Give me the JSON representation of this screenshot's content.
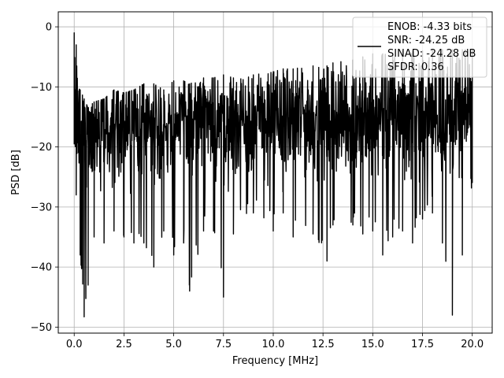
{
  "chart_data": {
    "type": "line",
    "title": "",
    "xlabel": "Frequency [MHz]",
    "ylabel": "PSD [dB]",
    "xlim": [
      -0.8,
      21.0
    ],
    "ylim": [
      -51.0,
      2.5
    ],
    "xticks": [
      0,
      2.5,
      5,
      7.5,
      10,
      12.5,
      15,
      17.5,
      20
    ],
    "xtick_labels": [
      "0.0",
      "2.5",
      "5.0",
      "7.5",
      "10.0",
      "12.5",
      "15.0",
      "17.5",
      "20.0"
    ],
    "yticks": [
      0,
      -10,
      -20,
      -30,
      -40,
      -50
    ],
    "ytick_labels": [
      "0",
      "−10",
      "−20",
      "−30",
      "−40",
      "−50"
    ],
    "grid": true,
    "legend_placement": "top-right",
    "legend": {
      "lines": [
        "ENOB: -4.33 bits",
        "SNR: -24.25 dB",
        "SINAD: -24.28 dB",
        "SFDR: 0.36"
      ]
    },
    "series": [
      {
        "color": "#000000",
        "envelope": [
          {
            "x": 0.0,
            "max": -1.0,
            "min": -19.5
          },
          {
            "x": 0.1,
            "max": -3.0,
            "min": -28.0
          },
          {
            "x": 0.3,
            "max": -10.5,
            "min": -38.0
          },
          {
            "x": 0.5,
            "max": -12.0,
            "min": -48.3
          },
          {
            "x": 0.7,
            "max": -13.5,
            "min": -43.0
          },
          {
            "x": 1.0,
            "max": -12.5,
            "min": -35.0
          },
          {
            "x": 1.5,
            "max": -12.0,
            "min": -36.0
          },
          {
            "x": 2.0,
            "max": -10.5,
            "min": -34.0
          },
          {
            "x": 2.5,
            "max": -11.0,
            "min": -35.0
          },
          {
            "x": 3.0,
            "max": -10.5,
            "min": -36.0
          },
          {
            "x": 3.5,
            "max": -9.5,
            "min": -36.0
          },
          {
            "x": 4.0,
            "max": -9.5,
            "min": -40.0
          },
          {
            "x": 4.5,
            "max": -10.5,
            "min": -34.0
          },
          {
            "x": 5.0,
            "max": -9.0,
            "min": -38.0
          },
          {
            "x": 5.5,
            "max": -9.0,
            "min": -36.0
          },
          {
            "x": 5.8,
            "max": -9.5,
            "min": -44.0
          },
          {
            "x": 6.5,
            "max": -8.5,
            "min": -34.0
          },
          {
            "x": 7.0,
            "max": -8.5,
            "min": -34.0
          },
          {
            "x": 7.5,
            "max": -8.0,
            "min": -45.0
          },
          {
            "x": 8.0,
            "max": -8.5,
            "min": -34.5
          },
          {
            "x": 9.0,
            "max": -8.0,
            "min": -31.0
          },
          {
            "x": 10.0,
            "max": -7.5,
            "min": -34.0
          },
          {
            "x": 10.5,
            "max": -7.0,
            "min": -31.0
          },
          {
            "x": 11.0,
            "max": -7.0,
            "min": -35.0
          },
          {
            "x": 12.0,
            "max": -6.5,
            "min": -34.5
          },
          {
            "x": 12.7,
            "max": -6.5,
            "min": -39.0
          },
          {
            "x": 13.0,
            "max": -6.0,
            "min": -33.0
          },
          {
            "x": 14.0,
            "max": -5.5,
            "min": -33.0
          },
          {
            "x": 14.5,
            "max": -5.0,
            "min": -34.5
          },
          {
            "x": 15.0,
            "max": -4.5,
            "min": -34.0
          },
          {
            "x": 15.5,
            "max": -4.5,
            "min": -38.0
          },
          {
            "x": 16.0,
            "max": -4.5,
            "min": -35.0
          },
          {
            "x": 16.5,
            "max": -4.0,
            "min": -34.0
          },
          {
            "x": 17.0,
            "max": -4.0,
            "min": -36.0
          },
          {
            "x": 17.5,
            "max": -4.0,
            "min": -32.0
          },
          {
            "x": 18.0,
            "max": -3.8,
            "min": -31.0
          },
          {
            "x": 18.5,
            "max": -3.8,
            "min": -36.0
          },
          {
            "x": 19.0,
            "max": -3.8,
            "min": -48.0
          },
          {
            "x": 19.5,
            "max": -3.8,
            "min": -38.0
          },
          {
            "x": 20.0,
            "max": -3.8,
            "min": -26.0
          }
        ],
        "median_db": -16.5
      }
    ]
  }
}
